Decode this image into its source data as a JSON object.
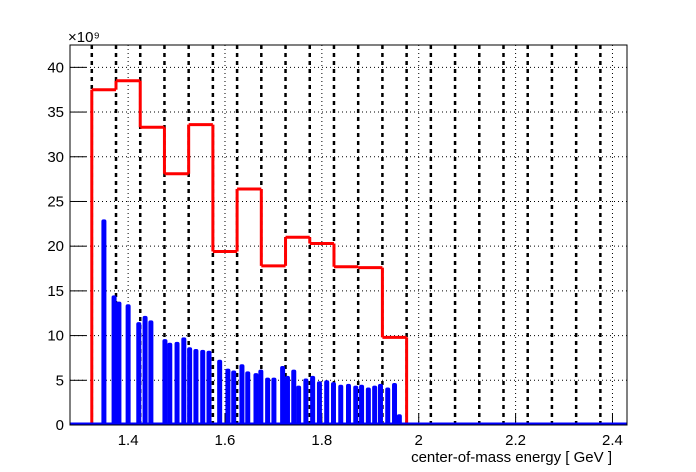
{
  "chart_data": {
    "type": "histogram",
    "x_label": "center-of-mass energy [ GeV ]",
    "y_multiplier": "×10⁹",
    "xlim": [
      1.28,
      2.43
    ],
    "ylim": [
      0,
      42.5
    ],
    "xticks": [
      1.4,
      1.6,
      1.8,
      2,
      2.2,
      2.4
    ],
    "yticks": [
      0,
      5,
      10,
      15,
      20,
      25,
      30,
      35,
      40
    ],
    "grid": true,
    "dashed_x": [
      1.325,
      1.375,
      1.425,
      1.475,
      1.525,
      1.575,
      1.625,
      1.675,
      1.725,
      1.775,
      1.825,
      1.875,
      1.925,
      1.975,
      2.025,
      2.075,
      2.125,
      2.175,
      2.225,
      2.275,
      2.325,
      2.375
    ],
    "series": [
      {
        "type": "step",
        "color": "#ff0000",
        "bins": [
          1.325,
          1.375,
          1.425,
          1.475,
          1.525,
          1.575,
          1.625,
          1.675,
          1.725,
          1.775,
          1.825,
          1.875,
          1.925,
          1.975
        ],
        "values": [
          37.5,
          38.5,
          33.3,
          28.1,
          33.6,
          19.4,
          26.4,
          17.8,
          21.0,
          20.3,
          17.7,
          17.6,
          9.8
        ]
      },
      {
        "type": "bar",
        "color": "#0000ff",
        "x": [
          1.35,
          1.371,
          1.381,
          1.4,
          1.422,
          1.435,
          1.447,
          1.476,
          1.486,
          1.501,
          1.515,
          1.527,
          1.54,
          1.554,
          1.567,
          1.589,
          1.606,
          1.618,
          1.635,
          1.647,
          1.664,
          1.674,
          1.688,
          1.701,
          1.719,
          1.729,
          1.742,
          1.752,
          1.767,
          1.781,
          1.795,
          1.81,
          1.824,
          1.839,
          1.855,
          1.87,
          1.882,
          1.896,
          1.909,
          1.921,
          1.936,
          1.95,
          1.96
        ],
        "values": [
          23.0,
          14.5,
          13.8,
          13.5,
          11.5,
          12.2,
          11.7,
          9.6,
          9.2,
          9.3,
          9.8,
          8.7,
          8.5,
          8.4,
          8.3,
          7.3,
          6.3,
          6.1,
          6.8,
          6.0,
          5.8,
          6.2,
          5.3,
          5.3,
          6.6,
          5.5,
          6.2,
          4.4,
          5.2,
          5.5,
          4.9,
          5.0,
          4.8,
          4.5,
          4.6,
          4.4,
          4.5,
          4.2,
          4.4,
          4.6,
          4.2,
          4.7,
          1.2
        ]
      }
    ]
  }
}
